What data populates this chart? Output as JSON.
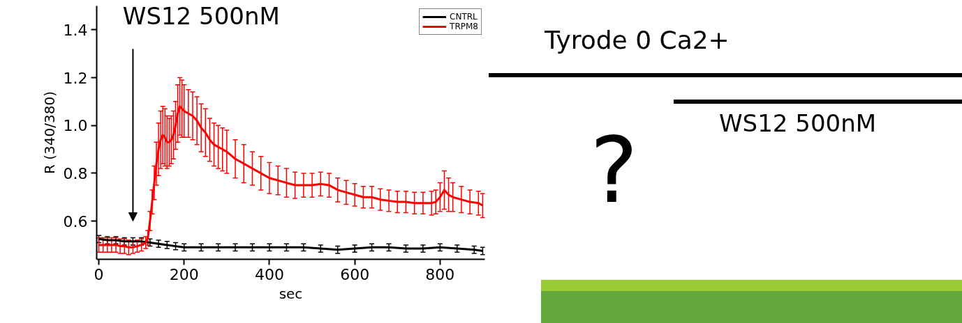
{
  "chart_data": {
    "type": "line",
    "xlabel": "sec",
    "ylabel": "R (340/380)",
    "xlim": [
      -5,
      905
    ],
    "ylim": [
      0.44,
      1.5
    ],
    "xticks": [
      0,
      200,
      400,
      600,
      800
    ],
    "yticks": [
      0.6,
      0.8,
      {
        "value": 1.0,
        "label": "1.0"
      },
      1.2,
      1.4
    ],
    "grid": false,
    "legend": "top right",
    "marker": "none",
    "line_style": "solid",
    "series": [
      {
        "name": "CNTRL",
        "color": "#000000",
        "x": [
          0,
          20,
          40,
          60,
          80,
          100,
          120,
          140,
          160,
          180,
          200,
          240,
          280,
          320,
          360,
          400,
          440,
          480,
          520,
          560,
          600,
          640,
          680,
          720,
          760,
          800,
          840,
          880,
          900
        ],
        "values": [
          0.525,
          0.52,
          0.52,
          0.515,
          0.515,
          0.515,
          0.51,
          0.505,
          0.5,
          0.495,
          0.49,
          0.49,
          0.49,
          0.49,
          0.49,
          0.49,
          0.49,
          0.49,
          0.485,
          0.48,
          0.485,
          0.49,
          0.49,
          0.485,
          0.485,
          0.49,
          0.485,
          0.48,
          0.475
        ],
        "errors": [
          0.015,
          0.015,
          0.015,
          0.015,
          0.015,
          0.015,
          0.015,
          0.015,
          0.015,
          0.015,
          0.015,
          0.015,
          0.015,
          0.015,
          0.015,
          0.015,
          0.015,
          0.015,
          0.015,
          0.015,
          0.015,
          0.015,
          0.015,
          0.015,
          0.015,
          0.015,
          0.015,
          0.015,
          0.015
        ]
      },
      {
        "name": "TRPM8",
        "color": "#ff0000",
        "x": [
          0,
          10,
          20,
          30,
          40,
          50,
          60,
          70,
          80,
          90,
          100,
          110,
          115,
          120,
          125,
          130,
          135,
          140,
          145,
          150,
          155,
          160,
          165,
          170,
          175,
          180,
          185,
          190,
          195,
          200,
          210,
          220,
          230,
          240,
          250,
          260,
          270,
          280,
          290,
          300,
          320,
          340,
          360,
          380,
          400,
          420,
          440,
          460,
          480,
          500,
          520,
          540,
          560,
          580,
          600,
          620,
          640,
          660,
          680,
          700,
          720,
          740,
          760,
          780,
          790,
          800,
          810,
          820,
          830,
          850,
          870,
          890,
          900
        ],
        "values": [
          0.5,
          0.5,
          0.5,
          0.5,
          0.5,
          0.495,
          0.495,
          0.49,
          0.49,
          0.495,
          0.5,
          0.51,
          0.53,
          0.6,
          0.68,
          0.76,
          0.84,
          0.9,
          0.94,
          0.96,
          0.95,
          0.93,
          0.93,
          0.94,
          0.96,
          1.0,
          1.05,
          1.08,
          1.07,
          1.06,
          1.05,
          1.04,
          1.02,
          0.99,
          0.97,
          0.94,
          0.92,
          0.91,
          0.9,
          0.89,
          0.86,
          0.84,
          0.82,
          0.8,
          0.78,
          0.77,
          0.76,
          0.75,
          0.75,
          0.75,
          0.755,
          0.75,
          0.73,
          0.72,
          0.71,
          0.7,
          0.7,
          0.69,
          0.685,
          0.68,
          0.68,
          0.675,
          0.675,
          0.675,
          0.68,
          0.7,
          0.73,
          0.71,
          0.7,
          0.69,
          0.68,
          0.675,
          0.665
        ],
        "errors": [
          0.03,
          0.03,
          0.03,
          0.03,
          0.03,
          0.03,
          0.03,
          0.03,
          0.025,
          0.025,
          0.025,
          0.025,
          0.03,
          0.04,
          0.05,
          0.07,
          0.09,
          0.11,
          0.12,
          0.12,
          0.12,
          0.11,
          0.1,
          0.1,
          0.1,
          0.1,
          0.12,
          0.12,
          0.12,
          0.11,
          0.1,
          0.1,
          0.1,
          0.1,
          0.1,
          0.09,
          0.09,
          0.09,
          0.09,
          0.09,
          0.08,
          0.08,
          0.07,
          0.07,
          0.065,
          0.06,
          0.06,
          0.055,
          0.05,
          0.05,
          0.05,
          0.05,
          0.05,
          0.05,
          0.047,
          0.045,
          0.045,
          0.045,
          0.045,
          0.045,
          0.045,
          0.045,
          0.045,
          0.05,
          0.05,
          0.06,
          0.08,
          0.07,
          0.06,
          0.055,
          0.05,
          0.05,
          0.05
        ]
      }
    ],
    "annotations": [
      "WS12 500nM",
      "Tyrode 0 Ca2+",
      "WS12 500nM",
      "?"
    ]
  }
}
